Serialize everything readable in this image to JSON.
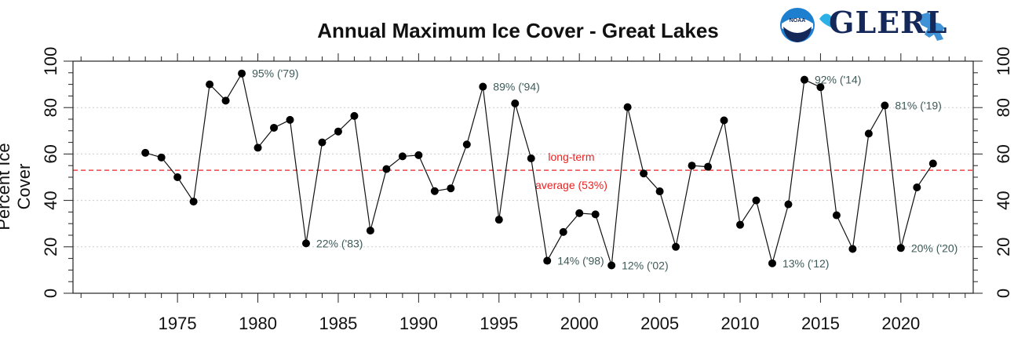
{
  "logo": {
    "text": "GLERL",
    "emblem": "noaa-emblem",
    "mark": "great-lakes-map-icon",
    "colors": {
      "navy": "#14285a",
      "blue": "#1e7fcf",
      "cyan": "#2bb1e6"
    }
  },
  "chart_data": {
    "type": "line",
    "title": "Annual Maximum Ice Cover - Great Lakes",
    "xlabel": "",
    "ylabel": "Percent Ice Cover",
    "xlim": [
      1968.5,
      2024.5
    ],
    "ylim": [
      0,
      100
    ],
    "x_ticks": [
      1975,
      1980,
      1985,
      1990,
      1995,
      2000,
      2005,
      2010,
      2015,
      2020
    ],
    "y_ticks": [
      0,
      20,
      40,
      60,
      80,
      100
    ],
    "grid": "horizontal-dotted",
    "series": [
      {
        "x": [
          1973,
          1974,
          1975,
          1976,
          1977,
          1978,
          1979,
          1980,
          1981,
          1982,
          1983,
          1984,
          1985,
          1986,
          1987,
          1988,
          1989,
          1990,
          1991,
          1992,
          1993,
          1994,
          1995,
          1996,
          1997,
          1998,
          1999,
          2000,
          2001,
          2002,
          2003,
          2004,
          2005,
          2006,
          2007,
          2008,
          2009,
          2010,
          2011,
          2012,
          2013,
          2014,
          2015,
          2016,
          2017,
          2018,
          2019,
          2020,
          2021,
          2022
        ],
        "values": [
          60.5,
          58.5,
          50,
          39.5,
          90,
          83,
          94.7,
          62.7,
          71.3,
          74.7,
          21.5,
          65,
          69.7,
          76.4,
          27,
          53.5,
          59,
          59.5,
          44,
          45.2,
          64.1,
          89,
          31.7,
          81.8,
          58.1,
          14,
          26.4,
          34.5,
          34,
          12,
          80.2,
          51.6,
          43.9,
          20,
          55,
          54.5,
          74.5,
          29.5,
          40,
          12.9,
          38.3,
          92,
          88.8,
          33.6,
          19.1,
          68.8,
          80.9,
          19.5,
          45.6,
          55.9
        ]
      }
    ],
    "annotations": [
      {
        "text": "95% ('79)",
        "x": 1979,
        "y": 94.7
      },
      {
        "text": "22% ('83)",
        "x": 1983,
        "y": 21.5
      },
      {
        "text": "89% ('94)",
        "x": 1994,
        "y": 89
      },
      {
        "text": "14% ('98)",
        "x": 1998,
        "y": 14
      },
      {
        "text": "12% ('02)",
        "x": 2002,
        "y": 12
      },
      {
        "text": "13% ('12)",
        "x": 2012,
        "y": 12.9
      },
      {
        "text": "92% ('14)",
        "x": 2014,
        "y": 92
      },
      {
        "text": "81% ('19)",
        "x": 2019,
        "y": 80.9
      },
      {
        "text": "20% ('20)",
        "x": 2020,
        "y": 19.5
      }
    ],
    "reference_line": {
      "value": 53,
      "label_line1": "long-term",
      "label_line2": "average (53%)",
      "color": "#ee2020"
    },
    "colors": {
      "line": "#111111",
      "marker": "#000000",
      "annotation": "#3d5a58",
      "grid": "#cccccc"
    }
  }
}
